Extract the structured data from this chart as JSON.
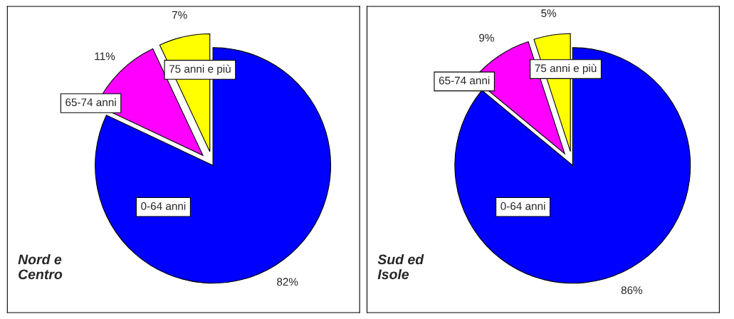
{
  "chart_data": [
    {
      "type": "pie",
      "title": "Nord e\nCentro",
      "categories": [
        "0-64 anni",
        "65-74 anni",
        "75 anni e più"
      ],
      "values": [
        82,
        11,
        7
      ],
      "colors": [
        "#0000ff",
        "#ff00ff",
        "#ffff00"
      ],
      "value_labels": [
        "82%",
        "11%",
        "7%"
      ]
    },
    {
      "type": "pie",
      "title": "Sud ed\nIsole",
      "categories": [
        "0-64 anni",
        "65-74 anni",
        "75 anni e più"
      ],
      "values": [
        86,
        9,
        5
      ],
      "colors": [
        "#0000ff",
        "#ff00ff",
        "#ffff00"
      ],
      "value_labels": [
        "86%",
        "9%",
        "5%"
      ]
    }
  ]
}
